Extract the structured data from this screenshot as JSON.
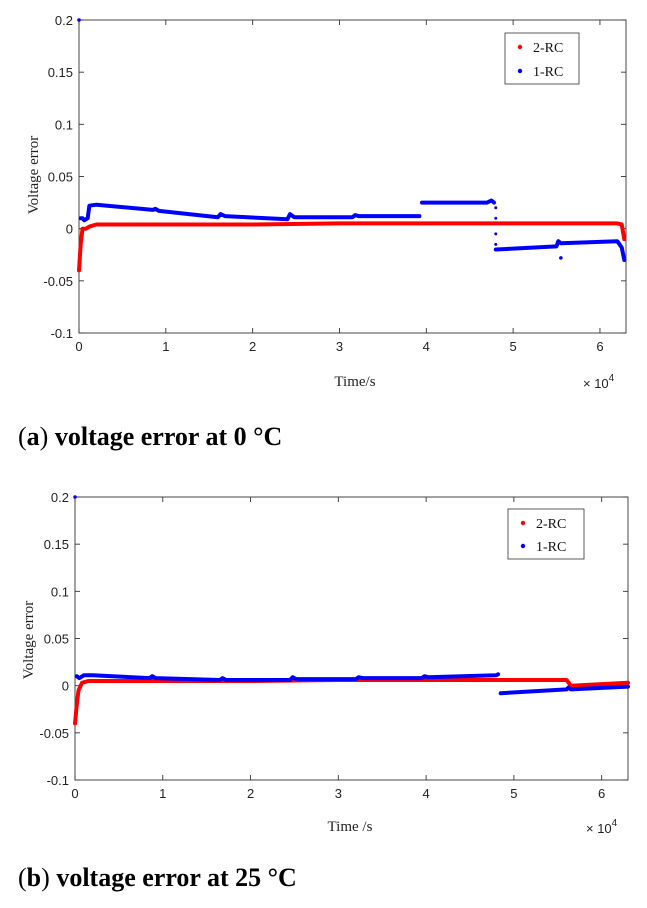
{
  "chart_data": [
    {
      "type": "scatter",
      "caption_letter": "a",
      "caption_text": "voltage error at 0 °C",
      "xlabel": "Time/s",
      "ylabel": "Voltage  error",
      "x_multiplier": "× 10",
      "x_multiplier_exp": "4",
      "xlim": [
        0,
        6.3
      ],
      "ylim": [
        -0.1,
        0.2
      ],
      "xticks": [
        0,
        1,
        2,
        3,
        4,
        5,
        6
      ],
      "yticks": [
        -0.1,
        -0.05,
        0,
        0.05,
        0.1,
        0.15,
        0.2
      ],
      "ytick_labels": [
        "-0.1",
        "-0.05",
        "0",
        "0.05",
        "0.1",
        "0.15",
        "0.2"
      ],
      "grid": false,
      "legend_position": "top-right",
      "series": [
        {
          "name": "2-RC",
          "color": "#ff0000",
          "segments": [
            [
              [
                0,
                -0.04
              ],
              [
                0.02,
                -0.015
              ],
              [
                0.04,
                0.0
              ],
              [
                0.08,
                0.0
              ],
              [
                0.12,
                0.002
              ],
              [
                0.2,
                0.004
              ],
              [
                1,
                0.004
              ],
              [
                2,
                0.004
              ],
              [
                3,
                0.005
              ],
              [
                4,
                0.005
              ],
              [
                5,
                0.005
              ],
              [
                6.2,
                0.005
              ],
              [
                6.25,
                0.004
              ],
              [
                6.28,
                -0.01
              ]
            ]
          ]
        },
        {
          "name": "1-RC",
          "color": "#0000ff",
          "segments": [
            [
              [
                0,
                0.2
              ]
            ],
            [
              [
                0.02,
                0.01
              ],
              [
                0.04,
                0.01
              ],
              [
                0.06,
                0.008
              ],
              [
                0.1,
                0.01
              ],
              [
                0.12,
                0.022
              ],
              [
                0.2,
                0.023
              ],
              [
                0.85,
                0.018
              ],
              [
                0.88,
                0.019
              ],
              [
                0.92,
                0.017
              ],
              [
                1.6,
                0.011
              ],
              [
                1.63,
                0.014
              ],
              [
                1.68,
                0.012
              ],
              [
                2.4,
                0.009
              ],
              [
                2.43,
                0.014
              ],
              [
                2.48,
                0.011
              ],
              [
                3.15,
                0.011
              ],
              [
                3.18,
                0.013
              ],
              [
                3.22,
                0.012
              ],
              [
                3.92,
                0.012
              ]
            ],
            [
              [
                3.95,
                0.025
              ],
              [
                4.7,
                0.025
              ],
              [
                4.75,
                0.027
              ],
              [
                4.78,
                0.025
              ]
            ],
            [
              [
                4.8,
                0.02
              ],
              [
                4.8,
                0.01
              ],
              [
                4.8,
                -0.005
              ],
              [
                4.8,
                -0.015
              ]
            ],
            [
              [
                4.8,
                -0.02
              ],
              [
                5.5,
                -0.017
              ],
              [
                5.52,
                -0.012
              ],
              [
                5.55,
                -0.014
              ],
              [
                6.2,
                -0.012
              ],
              [
                6.25,
                -0.018
              ],
              [
                6.28,
                -0.03
              ]
            ],
            [
              [
                5.55,
                -0.028
              ]
            ]
          ]
        }
      ]
    },
    {
      "type": "scatter",
      "caption_letter": "b",
      "caption_text": "voltage error at 25 °C",
      "xlabel": "Time /s",
      "ylabel": "Voltage  error",
      "x_multiplier": "× 10",
      "x_multiplier_exp": "4",
      "xlim": [
        0,
        6.3
      ],
      "ylim": [
        -0.1,
        0.2
      ],
      "xticks": [
        0,
        1,
        2,
        3,
        4,
        5,
        6
      ],
      "yticks": [
        -0.1,
        -0.05,
        0,
        0.05,
        0.1,
        0.15,
        0.2
      ],
      "ytick_labels": [
        "-0.1",
        "-0.05",
        "0",
        "0.05",
        "0.1",
        "0.15",
        "0.2"
      ],
      "grid": false,
      "legend_position": "top-right",
      "series": [
        {
          "name": "2-RC",
          "color": "#ff0000",
          "segments": [
            [
              [
                0,
                -0.04
              ],
              [
                0.02,
                -0.02
              ],
              [
                0.04,
                -0.005
              ],
              [
                0.08,
                0.003
              ],
              [
                0.15,
                0.005
              ],
              [
                1,
                0.005
              ],
              [
                2,
                0.005
              ],
              [
                3,
                0.006
              ],
              [
                4,
                0.006
              ],
              [
                4.85,
                0.006
              ],
              [
                5.6,
                0.006
              ],
              [
                5.65,
                0.0
              ],
              [
                6.3,
                0.003
              ]
            ]
          ]
        },
        {
          "name": "1-RC",
          "color": "#0000ff",
          "segments": [
            [
              [
                0,
                0.2
              ]
            ],
            [
              [
                0.02,
                0.01
              ],
              [
                0.05,
                0.008
              ],
              [
                0.1,
                0.011
              ],
              [
                0.2,
                0.011
              ],
              [
                0.85,
                0.008
              ],
              [
                0.88,
                0.01
              ],
              [
                0.92,
                0.008
              ],
              [
                1.65,
                0.006
              ],
              [
                1.68,
                0.008
              ],
              [
                1.72,
                0.006
              ],
              [
                2.45,
                0.006
              ],
              [
                2.48,
                0.009
              ],
              [
                2.52,
                0.007
              ],
              [
                3.2,
                0.007
              ],
              [
                3.23,
                0.009
              ],
              [
                3.28,
                0.008
              ],
              [
                3.95,
                0.008
              ],
              [
                3.98,
                0.01
              ],
              [
                4.02,
                0.009
              ],
              [
                4.8,
                0.011
              ],
              [
                4.82,
                0.012
              ]
            ],
            [
              [
                4.85,
                -0.008
              ],
              [
                5.6,
                -0.004
              ],
              [
                5.62,
                -0.002
              ],
              [
                5.65,
                -0.004
              ],
              [
                6.3,
                -0.001
              ]
            ]
          ]
        }
      ]
    }
  ]
}
